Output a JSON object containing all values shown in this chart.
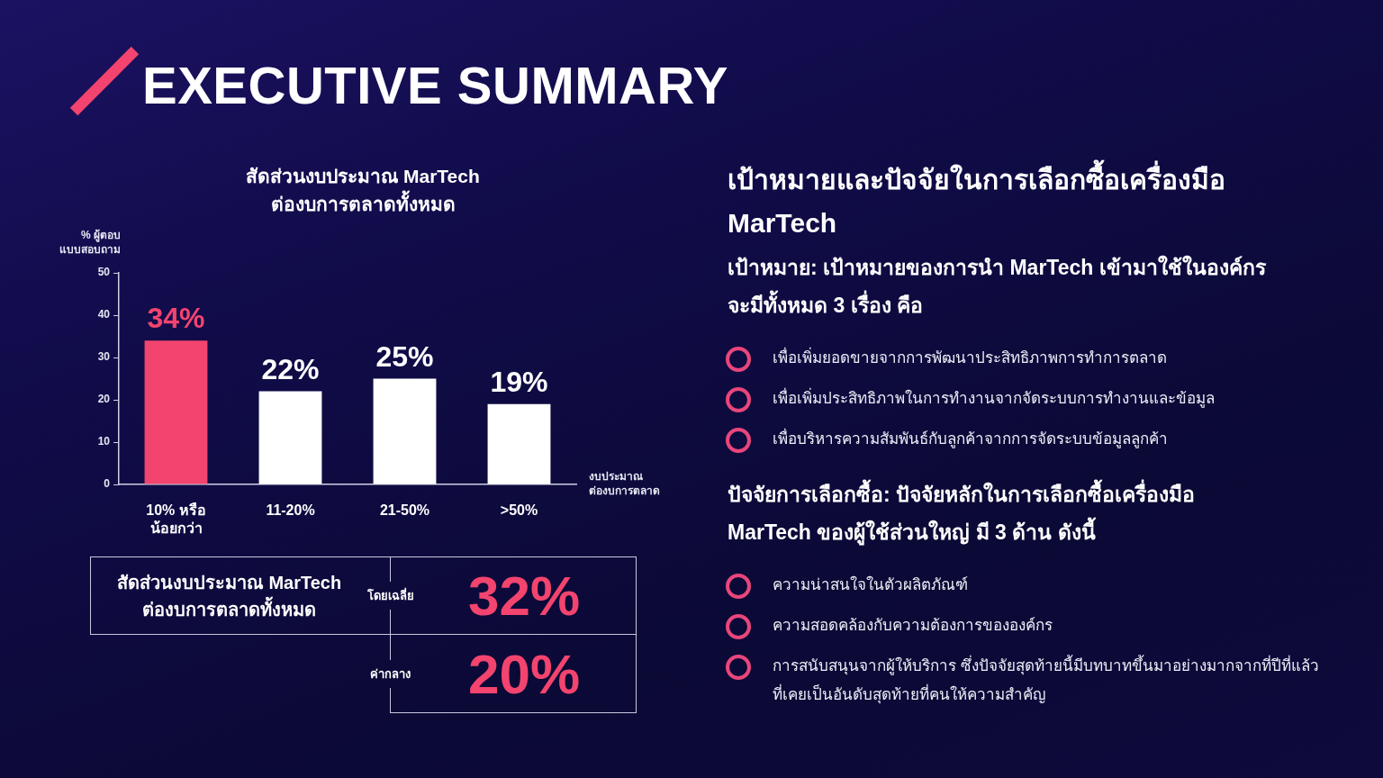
{
  "chart_data": [
    {
      "type": "other",
      "title": "EXECUTIVE SUMMARY"
    },
    {
      "type": "bar",
      "title": "สัดส่วนงบประมาณ MarTech ต่องบการตลาดทั้งหมด",
      "ylabel": "% ผู้ตอบแบบสอบถาม",
      "xlabel": "งบประมาณ ต่องบการตลาด",
      "categories": [
        "10% หรือน้อยกว่า",
        "11-20%",
        "21-50%",
        ">50%"
      ],
      "values": [
        34,
        22,
        25,
        19
      ],
      "colors": [
        "#f2446e",
        "#ffffff",
        "#ffffff",
        "#ffffff"
      ],
      "value_labels": [
        "34%",
        "22%",
        "25%",
        "19%"
      ],
      "ylim": [
        0,
        50
      ],
      "yticks": [
        0,
        10,
        20,
        30,
        40,
        50
      ]
    },
    {
      "type": "other",
      "title": "สัดส่วนงบประมาณ MarTech ต่องบการตลาดทั้งหมด",
      "categories": [
        "โดยเฉลี่ย",
        "ค่ากลาง"
      ],
      "values": [
        32,
        20
      ],
      "value_labels": [
        "32%",
        "20%"
      ],
      "color": "#f2446e"
    },
    {
      "type": "other",
      "title": "เป้าหมายและปัจจัยในการเลือกซื้อเครื่องมือ MarTech",
      "subtitle": "เป้าหมาย: เป้าหมายของการนำ MarTech เข้ามาใช้ในองค์กร จะมีทั้งหมด 3 เรื่อง คือ",
      "annotations": [
        "เพื่อเพิ่มยอดขายจากการพัฒนาประสิทธิภาพการทำการตลาด",
        "เพื่อเพิ่มประสิทธิภาพในการทำงานจากจัดระบบการทำงานและข้อมูล",
        "เพื่อบริหารความสัมพันธ์กับลูกค้าจากการจัดระบบข้อมูลลูกค้า"
      ]
    },
    {
      "type": "other",
      "subtitle": "ปัจจัยการเลือกซื้อ: ปัจจัยหลักในการเลือกซื้อเครื่องมือ MarTech ของผู้ใช้ส่วนใหญ่ มี 3 ด้าน ดังนี้",
      "annotations": [
        "ความน่าสนใจในตัวผลิตภัณฑ์",
        "ความสอดคล้องกับความต้องการขององค์กร",
        "การสนับสนุนจากผู้ให้บริการ ซึ่งปัจจัยสุดท้ายนี้มีบทบาทขึ้นมาอย่างมากจากที่ปีที่แล้วที่เคยเป็นอันดับสุดท้ายที่คนให้ความสำคัญ"
      ]
    }
  ]
}
